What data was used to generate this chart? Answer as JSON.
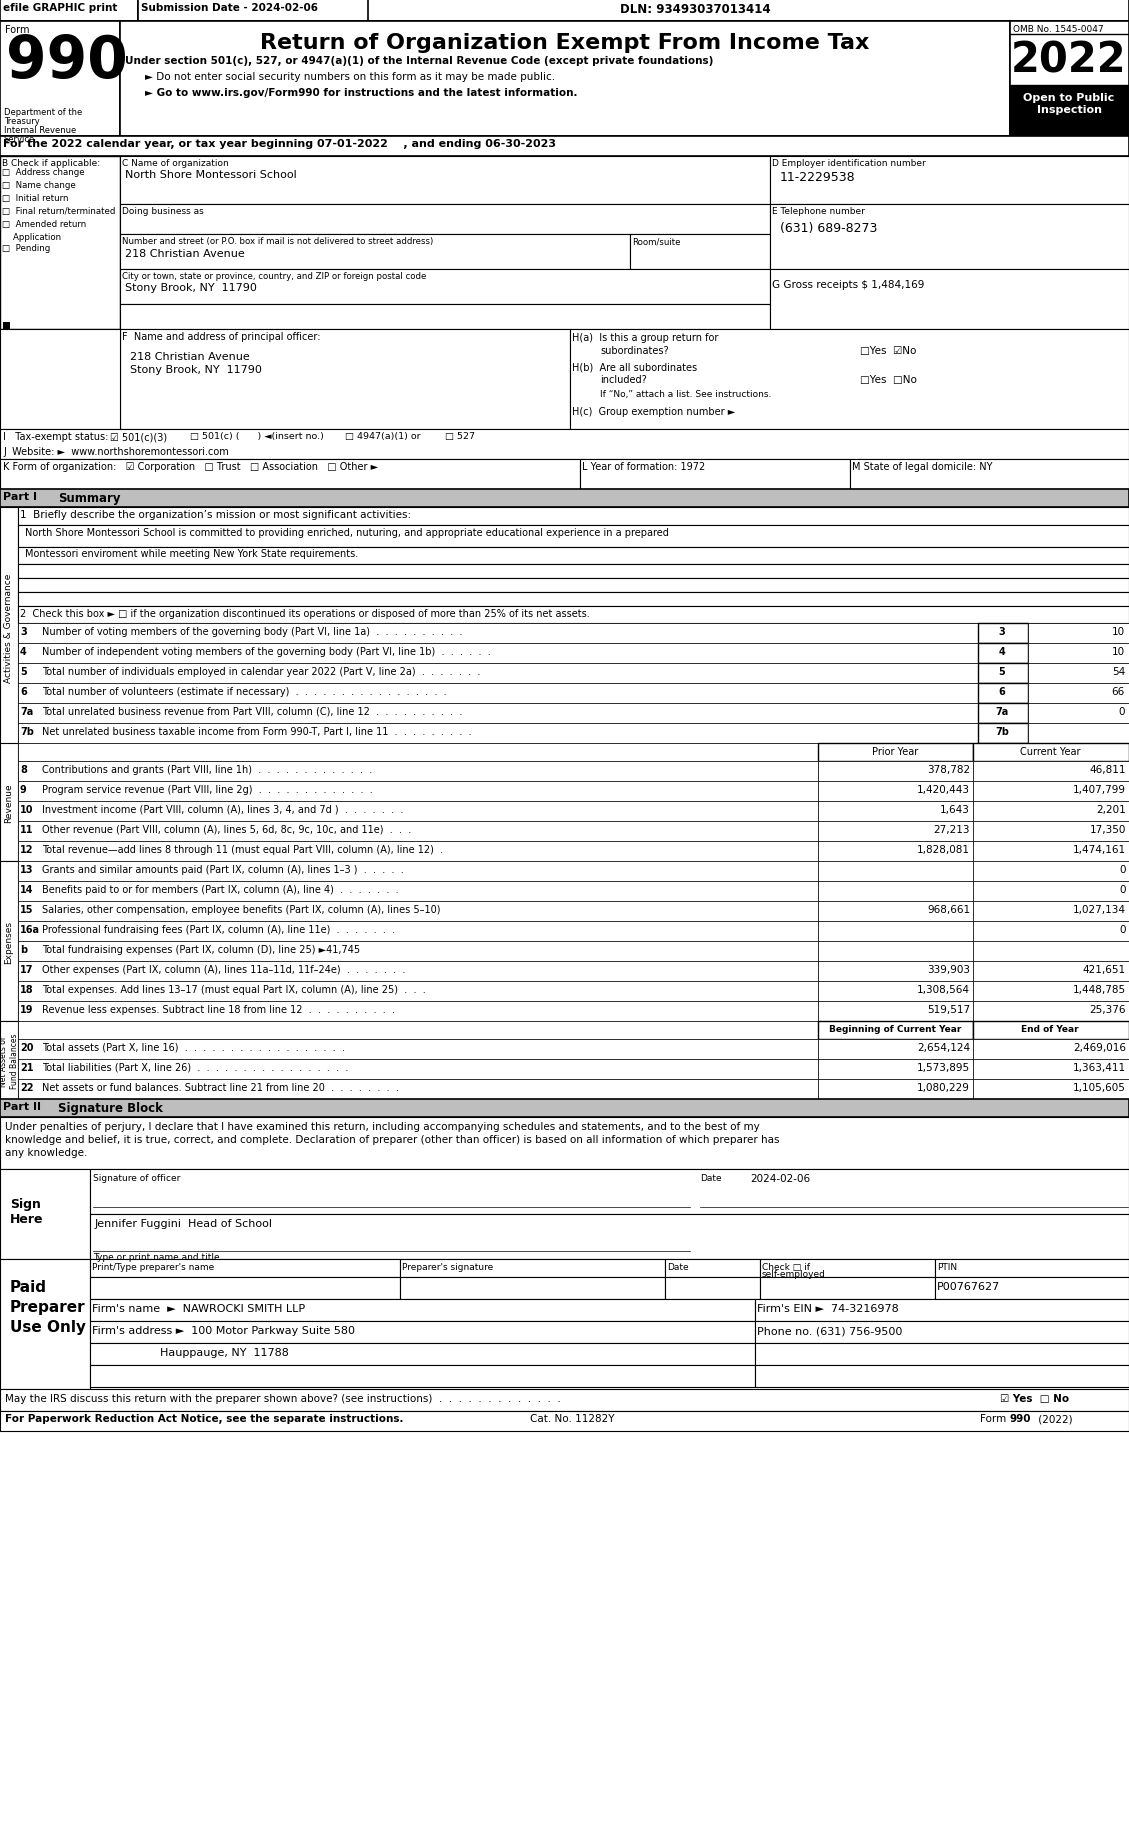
{
  "title": "Return of Organization Exempt From Income Tax",
  "subtitle_line1": "Under section 501(c), 527, or 4947(a)(1) of the Internal Revenue Code (except private foundations)",
  "subtitle_line2": "► Do not enter social security numbers on this form as it may be made public.",
  "subtitle_line3": "► Go to www.irs.gov/Form990 for instructions and the latest information.",
  "efile_text": "efile GRAPHIC print",
  "submission_date": "Submission Date - 2024-02-06",
  "dln": "DLN: 93493037013414",
  "omb": "OMB No. 1545-0047",
  "year": "2022",
  "form_number": "990",
  "tax_year_line": "For the 2022 calendar year, or tax year beginning 07-01-2022    , and ending 06-30-2023",
  "org_name_label": "C Name of organization",
  "org_name": "North Shore Montessori School",
  "dba_label": "Doing business as",
  "address_label": "Number and street (or P.O. box if mail is not delivered to street address)   Room/suite",
  "address_value": "218 Christian Avenue",
  "room_suite_label": "Room/suite",
  "city_label": "City or town, state or province, country, and ZIP or foreign postal code",
  "city_value": "Stony Brook, NY  11790",
  "ein_label": "D Employer identification number",
  "ein_value": "11-2229538",
  "phone_label": "E Telephone number",
  "phone_value": "(631) 689-8273",
  "gross_receipts": "G Gross receipts $ 1,484,169",
  "principal_officer_label": "F  Name and address of principal officer:",
  "principal_officer_line1": "218 Christian Avenue",
  "principal_officer_line2": "Stony Brook, NY  11790",
  "ha_label": "H(a)  Is this a group return for",
  "ha_sub": "subordinates?",
  "hb_label": "H(b)  Are all subordinates",
  "hb_sub": "included?",
  "hc_label": "H(c)  Group exemption number ►",
  "if_no_text": "If “No,” attach a list. See instructions.",
  "mission_label": "1  Briefly describe the organization’s mission or most significant activities:",
  "mission_line1": "North Shore Montessori School is committed to providing enriched, nuturing, and appropriate educational experience in a prepared",
  "mission_line2": "Montessori enviroment while meeting New York State requirements.",
  "check_box2": "2  Check this box ► □ if the organization discontinued its operations or disposed of more than 25% of its net assets.",
  "lines_summary": [
    {
      "num": "3",
      "text": "Number of voting members of the governing body (Part VI, line 1a)  .  .  .  .  .  .  .  .  .  .",
      "value": "10"
    },
    {
      "num": "4",
      "text": "Number of independent voting members of the governing body (Part VI, line 1b)  .  .  .  .  .  .",
      "value": "10"
    },
    {
      "num": "5",
      "text": "Total number of individuals employed in calendar year 2022 (Part V, line 2a)  .  .  .  .  .  .  .",
      "value": "54"
    },
    {
      "num": "6",
      "text": "Total number of volunteers (estimate if necessary)  .  .  .  .  .  .  .  .  .  .  .  .  .  .  .  .  .",
      "value": "66"
    },
    {
      "num": "7a",
      "text": "Total unrelated business revenue from Part VIII, column (C), line 12  .  .  .  .  .  .  .  .  .  .",
      "value": "0"
    },
    {
      "num": "7b",
      "text": "Net unrelated business taxable income from Form 990-T, Part I, line 11  .  .  .  .  .  .  .  .  .",
      "value": ""
    }
  ],
  "revenue_lines": [
    {
      "num": "8",
      "text": "Contributions and grants (Part VIII, line 1h)  .  .  .  .  .  .  .  .  .  .  .  .  .",
      "prior": "378,782",
      "current": "46,811"
    },
    {
      "num": "9",
      "text": "Program service revenue (Part VIII, line 2g)  .  .  .  .  .  .  .  .  .  .  .  .  .",
      "prior": "1,420,443",
      "current": "1,407,799"
    },
    {
      "num": "10",
      "text": "Investment income (Part VIII, column (A), lines 3, 4, and 7d )  .  .  .  .  .  .  .",
      "prior": "1,643",
      "current": "2,201"
    },
    {
      "num": "11",
      "text": "Other revenue (Part VIII, column (A), lines 5, 6d, 8c, 9c, 10c, and 11e)  .  .  .",
      "prior": "27,213",
      "current": "17,350"
    },
    {
      "num": "12",
      "text": "Total revenue—add lines 8 through 11 (must equal Part VIII, column (A), line 12)  .",
      "prior": "1,828,081",
      "current": "1,474,161"
    }
  ],
  "expenses_lines": [
    {
      "num": "13",
      "text": "Grants and similar amounts paid (Part IX, column (A), lines 1–3 )  .  .  .  .  .",
      "prior": "",
      "current": "0"
    },
    {
      "num": "14",
      "text": "Benefits paid to or for members (Part IX, column (A), line 4)  .  .  .  .  .  .  .",
      "prior": "",
      "current": "0"
    },
    {
      "num": "15",
      "text": "Salaries, other compensation, employee benefits (Part IX, column (A), lines 5–10)",
      "prior": "968,661",
      "current": "1,027,134"
    },
    {
      "num": "16a",
      "text": "Professional fundraising fees (Part IX, column (A), line 11e)  .  .  .  .  .  .  .",
      "prior": "",
      "current": "0"
    },
    {
      "num": "b",
      "text": "Total fundraising expenses (Part IX, column (D), line 25) ►41,745",
      "prior": "",
      "current": ""
    },
    {
      "num": "17",
      "text": "Other expenses (Part IX, column (A), lines 11a–11d, 11f–24e)  .  .  .  .  .  .  .",
      "prior": "339,903",
      "current": "421,651"
    },
    {
      "num": "18",
      "text": "Total expenses. Add lines 13–17 (must equal Part IX, column (A), line 25)  .  .  .",
      "prior": "1,308,564",
      "current": "1,448,785"
    },
    {
      "num": "19",
      "text": "Revenue less expenses. Subtract line 18 from line 12  .  .  .  .  .  .  .  .  .  .",
      "prior": "519,517",
      "current": "25,376"
    }
  ],
  "net_assets_lines": [
    {
      "num": "20",
      "text": "Total assets (Part X, line 16)  .  .  .  .  .  .  .  .  .  .  .  .  .  .  .  .  .  .",
      "begin": "2,654,124",
      "end": "2,469,016"
    },
    {
      "num": "21",
      "text": "Total liabilities (Part X, line 26)  .  .  .  .  .  .  .  .  .  .  .  .  .  .  .  .  .",
      "begin": "1,573,895",
      "end": "1,363,411"
    },
    {
      "num": "22",
      "text": "Net assets or fund balances. Subtract line 21 from line 20  .  .  .  .  .  .  .  .",
      "begin": "1,080,229",
      "end": "1,105,605"
    }
  ],
  "signature_text1": "Under penalties of perjury, I declare that I have examined this return, including accompanying schedules and statements, and to the best of my",
  "signature_text2": "knowledge and belief, it is true, correct, and complete. Declaration of preparer (other than officer) is based on all information of which preparer has",
  "signature_text3": "any knowledge.",
  "sign_date": "2024-02-06",
  "officer_name": "Jennifer Fuggini  Head of School",
  "officer_title": "Type or print name and title",
  "ptin_value": "P00767627",
  "firm_name": "NAWROCKI SMITH LLP",
  "firm_ein": "74-3216978",
  "firm_address": "100 Motor Parkway Suite 580",
  "firm_city": "Hauppauge, NY  11788",
  "firm_phone": "(631) 756-9500",
  "footer_line1": "May the IRS discuss this return with the preparer shown above? (see instructions)  .  .  .  .  .  .  .  .  .  .  .  .  .",
  "footer_line1_end": "☑ Yes  □ No",
  "footer_line2a": "For Paperwork Reduction Act Notice, see the separate instructions.",
  "footer_line2b": "Cat. No. 11282Y",
  "footer_line2c": "Form 990 (2022)"
}
